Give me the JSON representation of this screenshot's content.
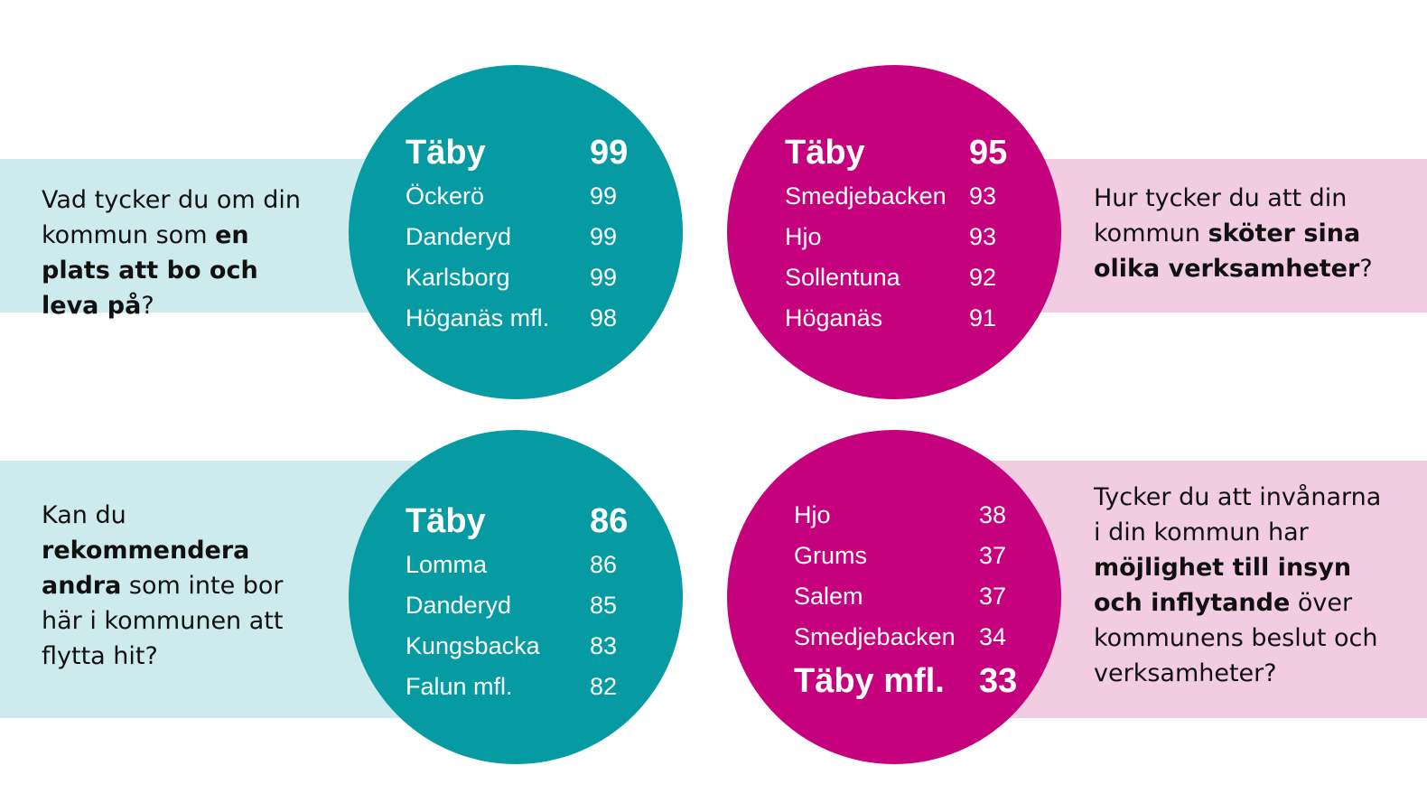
{
  "colors": {
    "teal": "#069ba3",
    "teal_band": "#cdeaed",
    "magenta": "#c5017d",
    "pink_band": "#f2cde2",
    "text": "#111111"
  },
  "panels": [
    {
      "question": {
        "part1": "Vad tycker du om din kommun som ",
        "bold": "en plats att bo och leva på",
        "part2": "?"
      },
      "ranking": [
        {
          "name": "Täby",
          "value": "99",
          "highlight": true
        },
        {
          "name": "Öckerö",
          "value": "99"
        },
        {
          "name": "Danderyd",
          "value": "99"
        },
        {
          "name": "Karlsborg",
          "value": "99"
        },
        {
          "name": "Höganäs mfl.",
          "value": "98"
        }
      ]
    },
    {
      "question": {
        "part1": "Hur tycker du att din kommun ",
        "bold": "sköter sina olika verksamheter",
        "part2": "?"
      },
      "ranking": [
        {
          "name": "Täby",
          "value": "95",
          "highlight": true
        },
        {
          "name": "Smedjebacken",
          "value": "93"
        },
        {
          "name": "Hjo",
          "value": "93"
        },
        {
          "name": "Sollentuna",
          "value": "92"
        },
        {
          "name": "Höganäs",
          "value": "91"
        }
      ]
    },
    {
      "question": {
        "part1": "Kan du ",
        "bold": "rekommendera andra",
        "part2": " som inte bor här i kommunen att flytta hit?"
      },
      "ranking": [
        {
          "name": "Täby",
          "value": "86",
          "highlight": true
        },
        {
          "name": "Lomma",
          "value": "86"
        },
        {
          "name": "Danderyd",
          "value": "85"
        },
        {
          "name": "Kungsbacka",
          "value": "83"
        },
        {
          "name": "Falun mfl.",
          "value": "82"
        }
      ]
    },
    {
      "question": {
        "part1": "Tycker du att invånarna i din kommun har ",
        "bold": "möjlighet till insyn och inflytande",
        "part2": " över kommunens beslut och verksamheter?"
      },
      "ranking": [
        {
          "name": "Hjo",
          "value": "38"
        },
        {
          "name": "Grums",
          "value": "37"
        },
        {
          "name": "Salem",
          "value": "37"
        },
        {
          "name": "Smedjebacken",
          "value": "34"
        },
        {
          "name": "Täby mfl.",
          "value": "33",
          "highlight": true
        }
      ]
    }
  ]
}
